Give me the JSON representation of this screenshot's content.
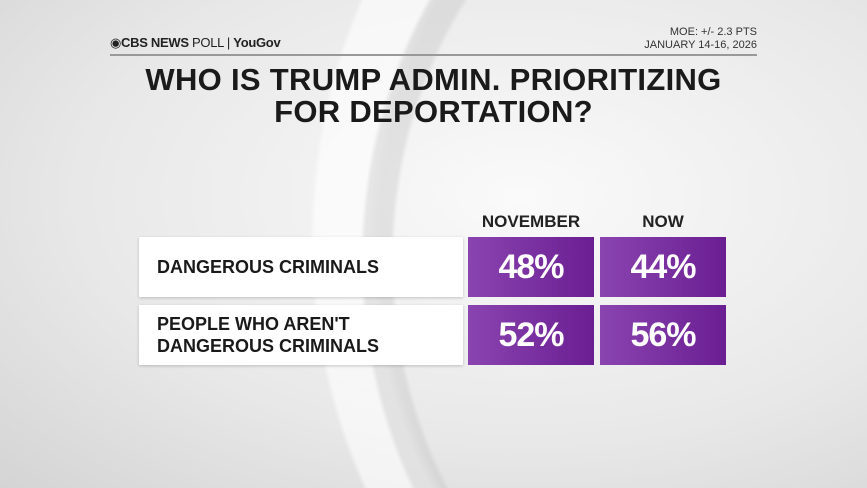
{
  "header": {
    "brand": "CBS NEWS",
    "poll": "POLL",
    "partner": "YouGov",
    "moe": "MOE: +/- 2.3 PTS",
    "dates": "JANUARY 14-16, 2026"
  },
  "title_lines": [
    "WHO IS TRUMP ADMIN. PRIORITIZING",
    "FOR DEPORTATION?"
  ],
  "colors": {
    "cell": "#7a2fa0",
    "label_bg": "#ffffff"
  },
  "chart_data": {
    "type": "table",
    "title": "WHO IS TRUMP ADMIN. PRIORITIZING FOR DEPORTATION?",
    "columns": [
      "NOVEMBER",
      "NOW"
    ],
    "rows": [
      {
        "label": "DANGEROUS CRIMINALS",
        "values": [
          "48%",
          "44%"
        ]
      },
      {
        "label": "PEOPLE WHO AREN'T DANGEROUS CRIMINALS",
        "label_lines": [
          "PEOPLE WHO AREN'T",
          "DANGEROUS CRIMINALS"
        ],
        "values": [
          "52%",
          "56%"
        ]
      }
    ]
  }
}
